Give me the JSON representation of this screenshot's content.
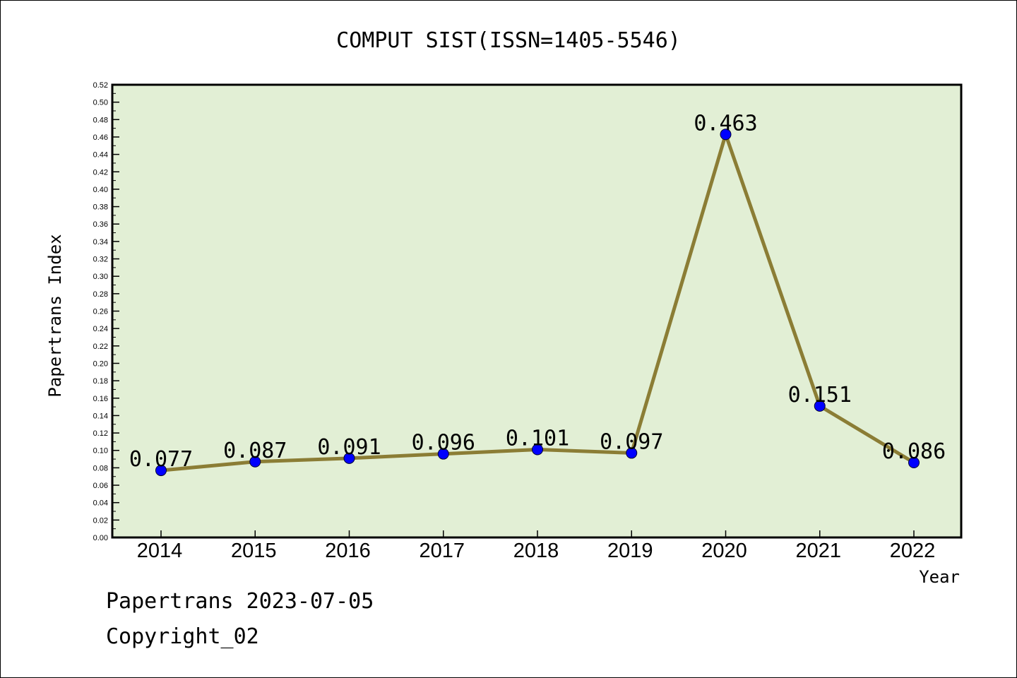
{
  "chart_data": {
    "type": "line",
    "title": "COMPUT SIST(ISSN=1405-5546)",
    "xlabel": "Year",
    "ylabel": "Papertrans Index",
    "categories": [
      "2014",
      "2015",
      "2016",
      "2017",
      "2018",
      "2019",
      "2020",
      "2021",
      "2022"
    ],
    "values": [
      0.077,
      0.087,
      0.091,
      0.096,
      0.101,
      0.097,
      0.463,
      0.151,
      0.086
    ],
    "value_labels": [
      "0.077",
      "0.087",
      "0.091",
      "0.096",
      "0.101",
      "0.097",
      "0.463",
      "0.151",
      "0.086"
    ],
    "ylim": [
      0,
      0.52
    ],
    "yticks": [
      "0.00",
      "0.02",
      "0.04",
      "0.06",
      "0.08",
      "0.10",
      "0.12",
      "0.14",
      "0.16",
      "0.18",
      "0.20",
      "0.22",
      "0.24",
      "0.26",
      "0.28",
      "0.30",
      "0.32",
      "0.34",
      "0.36",
      "0.38",
      "0.40",
      "0.42",
      "0.44",
      "0.46",
      "0.48",
      "0.50",
      "0.52"
    ],
    "grid": false,
    "colors": {
      "plot_background": "#e2efd5",
      "line": "#8b7d35",
      "marker": "#0000ff"
    }
  },
  "footer": {
    "date_text": "Papertrans 2023-07-05",
    "copyright_text": "Copyright_02"
  }
}
